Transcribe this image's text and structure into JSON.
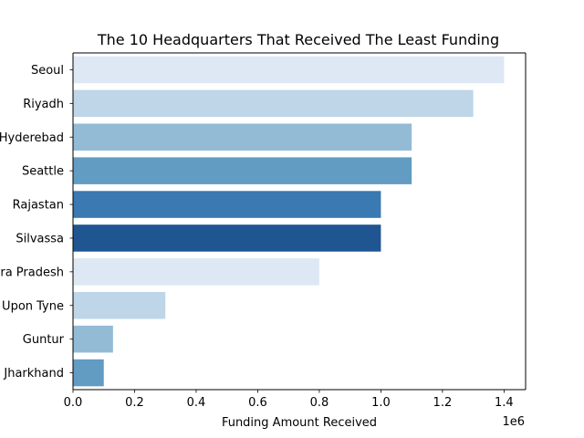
{
  "chart_data": {
    "type": "bar",
    "orientation": "horizontal",
    "title": "The 10 Headquarters That Received The Least Funding",
    "xlabel": "Funding Amount Received",
    "ylabel": "",
    "x_offset_label": "1e6",
    "xlim": [
      0,
      1470000
    ],
    "x_ticks": [
      0,
      200000,
      400000,
      600000,
      800000,
      1000000,
      1200000,
      1400000
    ],
    "x_tick_labels": [
      "0.0",
      "0.2",
      "0.4",
      "0.6",
      "0.8",
      "1.0",
      "1.2",
      "1.4"
    ],
    "categories": [
      "Seoul",
      "Riyadh",
      "Hyderebad",
      "Seattle",
      "Rajastan",
      "Silvassa",
      "Andhra Pradesh",
      "Newcastle Upon Tyne",
      "Guntur",
      "Jharkhand"
    ],
    "values": [
      1400000,
      1300000,
      1100000,
      1100000,
      1000000,
      1000000,
      800000,
      300000,
      130000,
      100000
    ],
    "colors": [
      "#dde8f4",
      "#bfd5e8",
      "#93bbd6",
      "#629cc2",
      "#3a79b1",
      "#1f5692",
      "#dde8f4",
      "#bfd5e8",
      "#93bbd6",
      "#629cc2"
    ],
    "grid": false,
    "legend": "none"
  }
}
